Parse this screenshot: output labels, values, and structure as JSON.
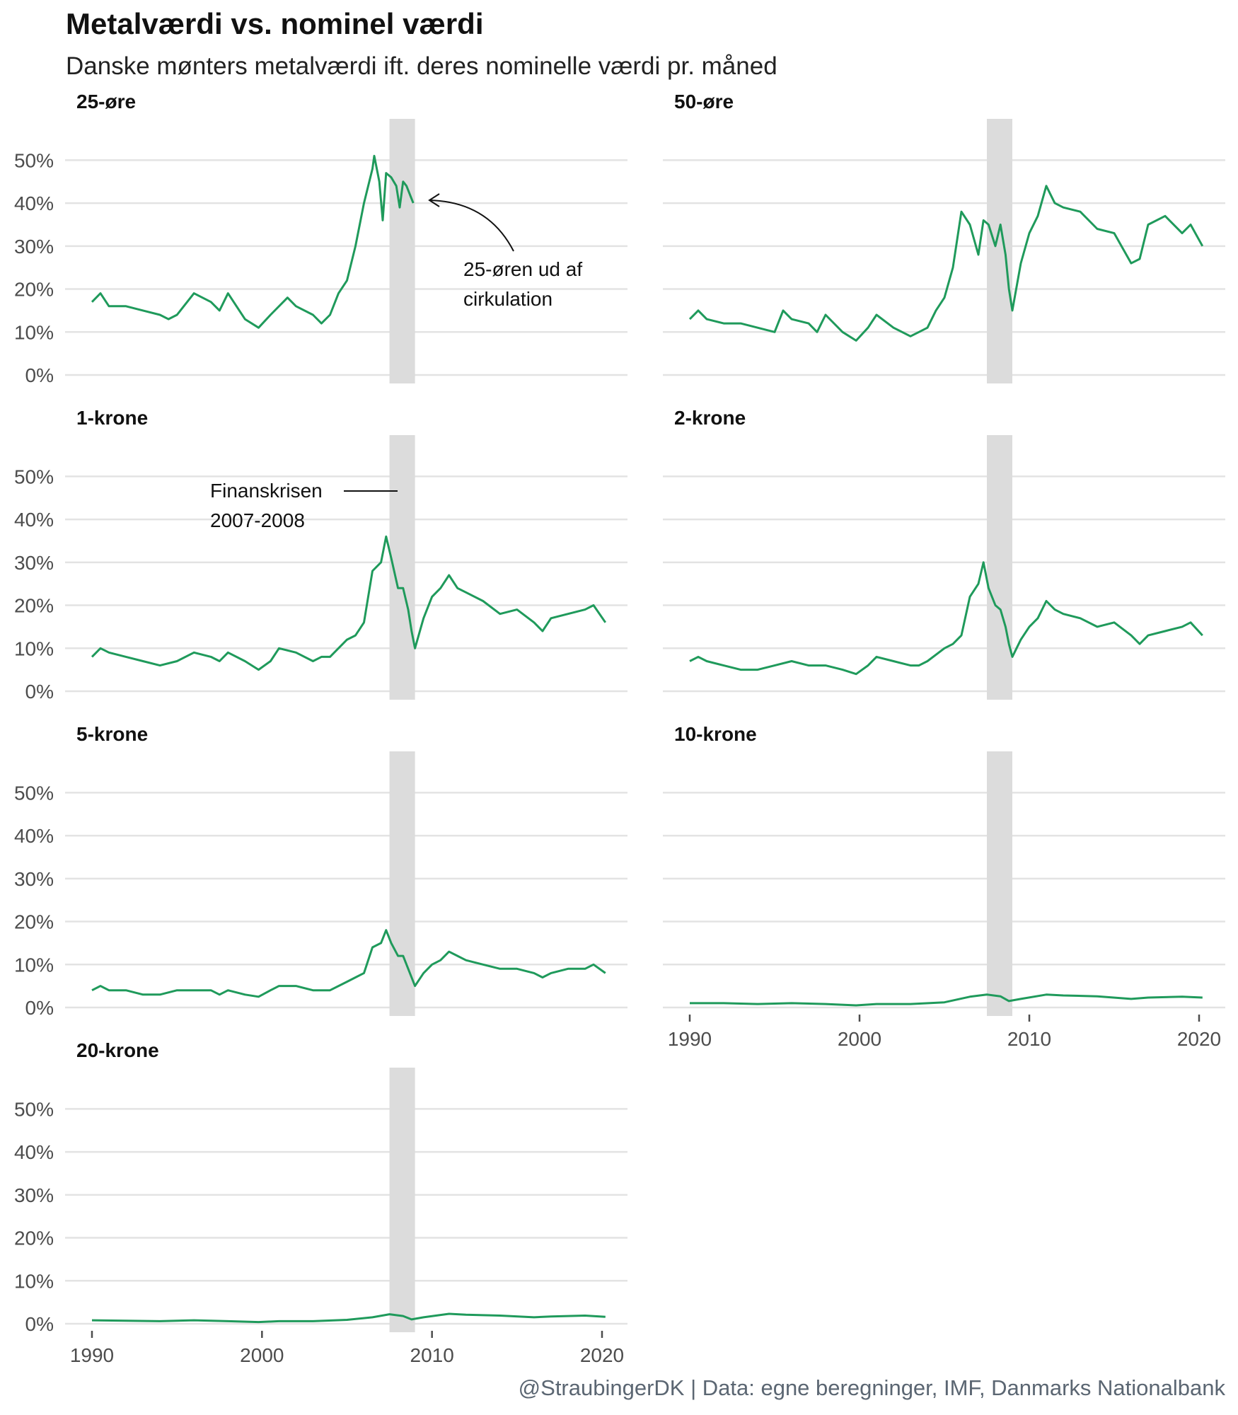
{
  "header": {
    "title": "Metalværdi vs. nominel værdi",
    "subtitle": "Danske mønters metalværdi ift. deres nominelle værdi pr. måned",
    "caption": "@StraubingerDK | Data: egne beregninger, IMF, Danmarks Nationalbank"
  },
  "chart_data": {
    "type": "line",
    "facets": [
      "25-øre",
      "50-øre",
      "1-krone",
      "2-krone",
      "5-krone",
      "10-krone",
      "20-krone"
    ],
    "xlim": [
      1990,
      2020.3
    ],
    "ylim": [
      0,
      55
    ],
    "x_ticks": [
      1990,
      2000,
      2010,
      2020
    ],
    "x_tick_labels": [
      "1990",
      "2000",
      "2010",
      "2020"
    ],
    "y_ticks": [
      0,
      10,
      20,
      30,
      40,
      50
    ],
    "y_tick_labels": [
      "0%",
      "10%",
      "20%",
      "30%",
      "40%",
      "50%"
    ],
    "grid": true,
    "line_color": "#1f9a5b",
    "highlight_band": {
      "x": [
        2007.5,
        2009.0
      ],
      "color": "#dcdcdc"
    },
    "series": [
      {
        "name": "25-øre",
        "x": [
          1990,
          1990.5,
          1991,
          1992,
          1993,
          1994,
          1994.5,
          1995,
          1996,
          1997,
          1997.5,
          1998,
          1999,
          1999.8,
          2000.5,
          2001.5,
          2002,
          2003,
          2003.5,
          2004,
          2004.5,
          2005,
          2005.5,
          2006,
          2006.5,
          2006.6,
          2006.9,
          2007.1,
          2007.3,
          2007.6,
          2007.9,
          2008.1,
          2008.3,
          2008.5,
          2008.7,
          2008.9
        ],
        "values": [
          17,
          19,
          16,
          16,
          15,
          14,
          13,
          14,
          19,
          17,
          15,
          19,
          13,
          11,
          14,
          18,
          16,
          14,
          12,
          14,
          19,
          22,
          30,
          40,
          48,
          51,
          45,
          36,
          47,
          46,
          44,
          39,
          45,
          44,
          42,
          40
        ]
      },
      {
        "name": "50-øre",
        "x": [
          1990,
          1990.5,
          1991,
          1992,
          1993,
          1994,
          1995,
          1995.5,
          1996,
          1997,
          1997.5,
          1998,
          1999,
          1999.8,
          2000.5,
          2001,
          2002,
          2003,
          2003.5,
          2004,
          2004.5,
          2005,
          2005.5,
          2006,
          2006.5,
          2007,
          2007.3,
          2007.6,
          2008,
          2008.3,
          2008.6,
          2008.8,
          2009,
          2009.5,
          2010,
          2010.5,
          2011,
          2011.5,
          2012,
          2013,
          2014,
          2015,
          2016,
          2016.5,
          2017,
          2018,
          2019,
          2019.5,
          2020.2
        ],
        "values": [
          13,
          15,
          13,
          12,
          12,
          11,
          10,
          15,
          13,
          12,
          10,
          14,
          10,
          8,
          11,
          14,
          11,
          9,
          10,
          11,
          15,
          18,
          25,
          38,
          35,
          28,
          36,
          35,
          30,
          35,
          28,
          20,
          15,
          26,
          33,
          37,
          44,
          40,
          39,
          38,
          34,
          33,
          26,
          27,
          35,
          37,
          33,
          35,
          30
        ]
      },
      {
        "name": "1-krone",
        "x": [
          1990,
          1990.5,
          1991,
          1992,
          1993,
          1994,
          1995,
          1996,
          1997,
          1997.5,
          1998,
          1999,
          1999.8,
          2000.5,
          2001,
          2002,
          2003,
          2003.5,
          2004,
          2005,
          2005.5,
          2006,
          2006.5,
          2007,
          2007.3,
          2007.6,
          2008,
          2008.3,
          2008.6,
          2008.8,
          2009,
          2009.5,
          2010,
          2010.5,
          2011,
          2011.5,
          2012,
          2013,
          2014,
          2015,
          2016,
          2016.5,
          2017,
          2018,
          2019,
          2019.5,
          2020.2
        ],
        "values": [
          8,
          10,
          9,
          8,
          7,
          6,
          7,
          9,
          8,
          7,
          9,
          7,
          5,
          7,
          10,
          9,
          7,
          8,
          8,
          12,
          13,
          16,
          28,
          30,
          36,
          31,
          24,
          24,
          19,
          14,
          10,
          17,
          22,
          24,
          27,
          24,
          23,
          21,
          18,
          19,
          16,
          14,
          17,
          18,
          19,
          20,
          16
        ]
      },
      {
        "name": "2-krone",
        "x": [
          1990,
          1990.5,
          1991,
          1992,
          1993,
          1994,
          1995,
          1996,
          1997,
          1997.5,
          1998,
          1999,
          1999.8,
          2000.5,
          2001,
          2002,
          2003,
          2003.5,
          2004,
          2005,
          2005.5,
          2006,
          2006.5,
          2007,
          2007.3,
          2007.6,
          2008,
          2008.3,
          2008.6,
          2008.8,
          2009,
          2009.5,
          2010,
          2010.5,
          2011,
          2011.5,
          2012,
          2013,
          2014,
          2015,
          2016,
          2016.5,
          2017,
          2018,
          2019,
          2019.5,
          2020.2
        ],
        "values": [
          7,
          8,
          7,
          6,
          5,
          5,
          6,
          7,
          6,
          6,
          6,
          5,
          4,
          6,
          8,
          7,
          6,
          6,
          7,
          10,
          11,
          13,
          22,
          25,
          30,
          24,
          20,
          19,
          15,
          11,
          8,
          12,
          15,
          17,
          21,
          19,
          18,
          17,
          15,
          16,
          13,
          11,
          13,
          14,
          15,
          16,
          13
        ]
      },
      {
        "name": "5-krone",
        "x": [
          1990,
          1990.5,
          1991,
          1992,
          1993,
          1994,
          1995,
          1996,
          1997,
          1997.5,
          1998,
          1999,
          1999.8,
          2000.5,
          2001,
          2002,
          2003,
          2003.5,
          2004,
          2005,
          2005.5,
          2006,
          2006.5,
          2007,
          2007.3,
          2007.6,
          2008,
          2008.3,
          2008.6,
          2008.8,
          2009,
          2009.5,
          2010,
          2010.5,
          2011,
          2011.5,
          2012,
          2013,
          2014,
          2015,
          2016,
          2016.5,
          2017,
          2018,
          2019,
          2019.5,
          2020.2
        ],
        "values": [
          4,
          5,
          4,
          4,
          3,
          3,
          4,
          4,
          4,
          3,
          4,
          3,
          2.5,
          4,
          5,
          5,
          4,
          4,
          4,
          6,
          7,
          8,
          14,
          15,
          18,
          15,
          12,
          12,
          9,
          7,
          5,
          8,
          10,
          11,
          13,
          12,
          11,
          10,
          9,
          9,
          8,
          7,
          8,
          9,
          9,
          10,
          8
        ]
      },
      {
        "name": "10-krone",
        "x": [
          1990,
          1992,
          1994,
          1996,
          1998,
          1999.8,
          2001,
          2003,
          2005,
          2006.5,
          2007.5,
          2008.3,
          2008.8,
          2009.5,
          2011,
          2012,
          2014,
          2016,
          2017,
          2019,
          2020.2
        ],
        "values": [
          1,
          1,
          0.8,
          1,
          0.8,
          0.5,
          0.8,
          0.8,
          1.2,
          2.5,
          3,
          2.6,
          1.5,
          2,
          3,
          2.8,
          2.6,
          2,
          2.3,
          2.5,
          2.3
        ]
      },
      {
        "name": "20-krone",
        "x": [
          1990,
          1992,
          1994,
          1996,
          1998,
          1999.8,
          2001,
          2003,
          2005,
          2006.5,
          2007.5,
          2008.3,
          2008.8,
          2009.5,
          2011,
          2012,
          2014,
          2016,
          2017,
          2019,
          2020.2
        ],
        "values": [
          0.8,
          0.7,
          0.6,
          0.8,
          0.6,
          0.4,
          0.6,
          0.6,
          0.9,
          1.5,
          2.2,
          1.8,
          1,
          1.5,
          2.3,
          2.1,
          1.9,
          1.5,
          1.7,
          1.9,
          1.6
        ]
      }
    ],
    "annotations": [
      {
        "facet": "25-øre",
        "lines": [
          "25-øren ud af",
          "cirkulation"
        ]
      },
      {
        "facet": "1-krone",
        "lines": [
          "Finanskrisen",
          "2007-2008"
        ]
      }
    ]
  }
}
